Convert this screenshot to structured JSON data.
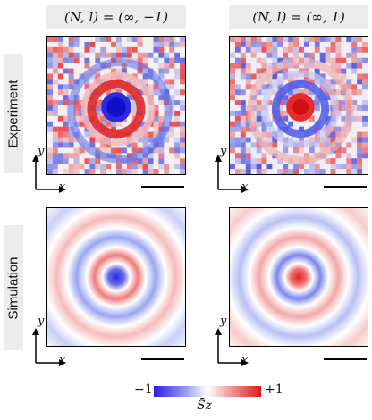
{
  "columns": [
    {
      "label": "(N, l) = (∞, −1)"
    },
    {
      "label": "(N, l) = (∞, 1)"
    }
  ],
  "rows": [
    {
      "label": "Experiment"
    },
    {
      "label": "Simulation"
    }
  ],
  "axes": {
    "x": "x",
    "y": "y"
  },
  "colorbar": {
    "min_label": "−1",
    "max_label": "+1",
    "title": "S̄z",
    "min_color": "#2b1ee6",
    "mid_color": "#ffffff",
    "max_color": "#e01818"
  }
}
